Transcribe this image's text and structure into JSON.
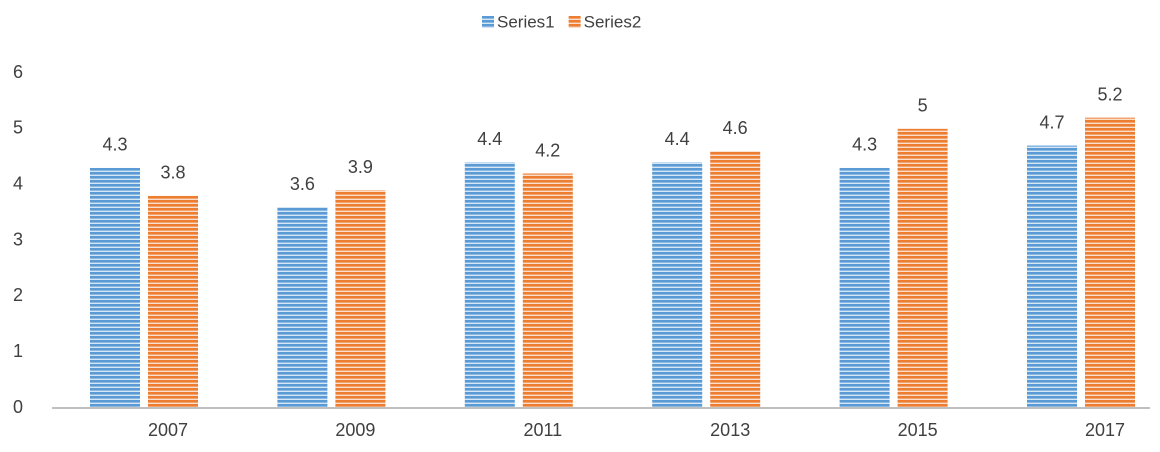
{
  "chart_data": {
    "type": "bar",
    "categories": [
      "2007",
      "2009",
      "2011",
      "2013",
      "2015",
      "2017"
    ],
    "series": [
      {
        "name": "Series1",
        "color": "#5b9bd5",
        "values": [
          4.3,
          3.6,
          4.4,
          4.4,
          4.3,
          4.7
        ]
      },
      {
        "name": "Series2",
        "color": "#ed7d31",
        "values": [
          3.8,
          3.9,
          4.2,
          4.6,
          5,
          5.2
        ]
      }
    ],
    "ylim": [
      0,
      6
    ],
    "yticks": [
      0,
      1,
      2,
      3,
      4,
      5,
      6
    ],
    "grid": false,
    "legend": "top"
  }
}
